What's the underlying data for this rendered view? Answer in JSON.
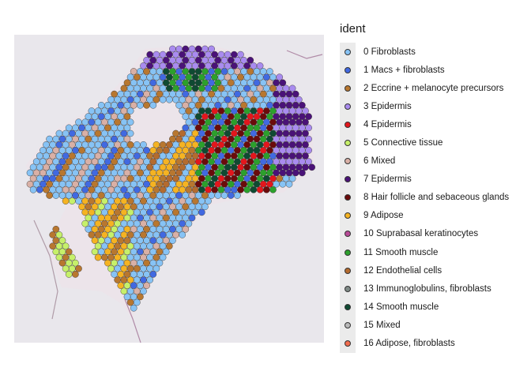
{
  "legend": {
    "title": "ident",
    "items": [
      {
        "label": "0 Fibroblasts",
        "color": "#87c3f5"
      },
      {
        "label": "1 Macs + fibroblasts",
        "color": "#4169e1"
      },
      {
        "label": "2 Eccrine + melanocyte precursors",
        "color": "#b8772f"
      },
      {
        "label": "3 Epidermis",
        "color": "#a98bef"
      },
      {
        "label": "4 Epidermis",
        "color": "#e3161c"
      },
      {
        "label": "5 Connective tissue",
        "color": "#c6f06a"
      },
      {
        "label": "6 Mixed",
        "color": "#d9b0a6"
      },
      {
        "label": "7 Epidermis",
        "color": "#4a1278"
      },
      {
        "label": "8 Hair follicle and sebaceous glands",
        "color": "#6b0b0b"
      },
      {
        "label": "9 Adipose",
        "color": "#f5b322"
      },
      {
        "label": "10 Suprabasal keratinocytes",
        "color": "#b84b97"
      },
      {
        "label": "11 Smooth muscle",
        "color": "#2ca02c"
      },
      {
        "label": "12 Endothelial cells",
        "color": "#b46b2e"
      },
      {
        "label": "13 Immunoglobulins, fibroblasts",
        "color": "#7f8a86"
      },
      {
        "label": "14 Smooth muscle",
        "color": "#0f4a32"
      },
      {
        "label": "15 Mixed",
        "color": "#b9b9b9"
      },
      {
        "label": "16 Adipose, fibroblasts",
        "color": "#f26d4f"
      }
    ]
  }
}
